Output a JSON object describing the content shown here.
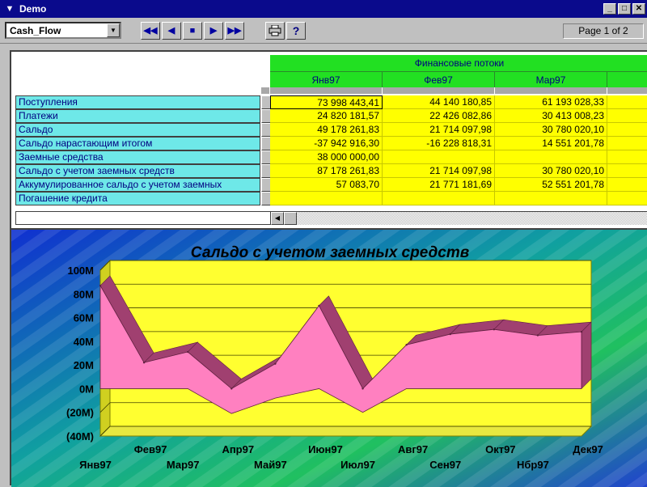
{
  "window": {
    "title": "Demo"
  },
  "toolbar": {
    "report_selector": "Cash_Flow",
    "page_indicator": "Page 1 of 2"
  },
  "grid": {
    "group_header": "Финансовые потоки",
    "months": [
      "Янв97",
      "Фев97",
      "Мар97"
    ],
    "rows": [
      {
        "label": "Поступления",
        "values": [
          "73 998 443,41",
          "44 140 180,85",
          "61 193 028,33"
        ]
      },
      {
        "label": "Платежи",
        "values": [
          "24 820 181,57",
          "22 426 082,86",
          "30 413 008,23"
        ]
      },
      {
        "label": "Сальдо",
        "values": [
          "49 178 261,83",
          "21 714 097,98",
          "30 780 020,10"
        ]
      },
      {
        "label": "Сальдо нарастающим итогом",
        "values": [
          "-37 942 916,30",
          "-16 228 818,31",
          "14 551 201,78"
        ]
      },
      {
        "label": "Заемные средства",
        "values": [
          "38 000 000,00",
          "",
          ""
        ]
      },
      {
        "label": "Сальдо с учетом заемных средств",
        "values": [
          "87 178 261,83",
          "21 714 097,98",
          "30 780 020,10"
        ]
      },
      {
        "label": "Аккумулированное сальдо с учетом заемных",
        "values": [
          "57 083,70",
          "21 771 181,69",
          "52 551 201,78"
        ]
      },
      {
        "label": "Погашение кредита",
        "values": [
          "",
          "",
          ""
        ]
      }
    ]
  },
  "chart_data": {
    "type": "area",
    "title": "Сальдо с учетом заемных средств",
    "categories": [
      "Янв97",
      "Фев97",
      "Мар97",
      "Апр97",
      "Май97",
      "Июн97",
      "Июл97",
      "Авг97",
      "Сен97",
      "Окт97",
      "Нбр97",
      "Дек97"
    ],
    "series": [
      {
        "values": [
          87,
          22,
          31,
          0,
          21,
          70,
          0,
          37,
          46,
          50,
          45,
          48
        ]
      },
      {
        "values": [
          0,
          0,
          0,
          -21,
          -8,
          0,
          -20,
          0,
          0,
          0,
          0,
          0
        ]
      }
    ],
    "y_tick_labels": [
      "100M",
      "80M",
      "60M",
      "40M",
      "20M",
      "0M",
      "(20M)",
      "(40M)"
    ],
    "ylim": [
      -40,
      100
    ],
    "grid": true,
    "colors": {
      "area": "#ff80c0",
      "area_side": "#a04070",
      "wall": "#ffff30",
      "floor": "#e8e840"
    }
  }
}
